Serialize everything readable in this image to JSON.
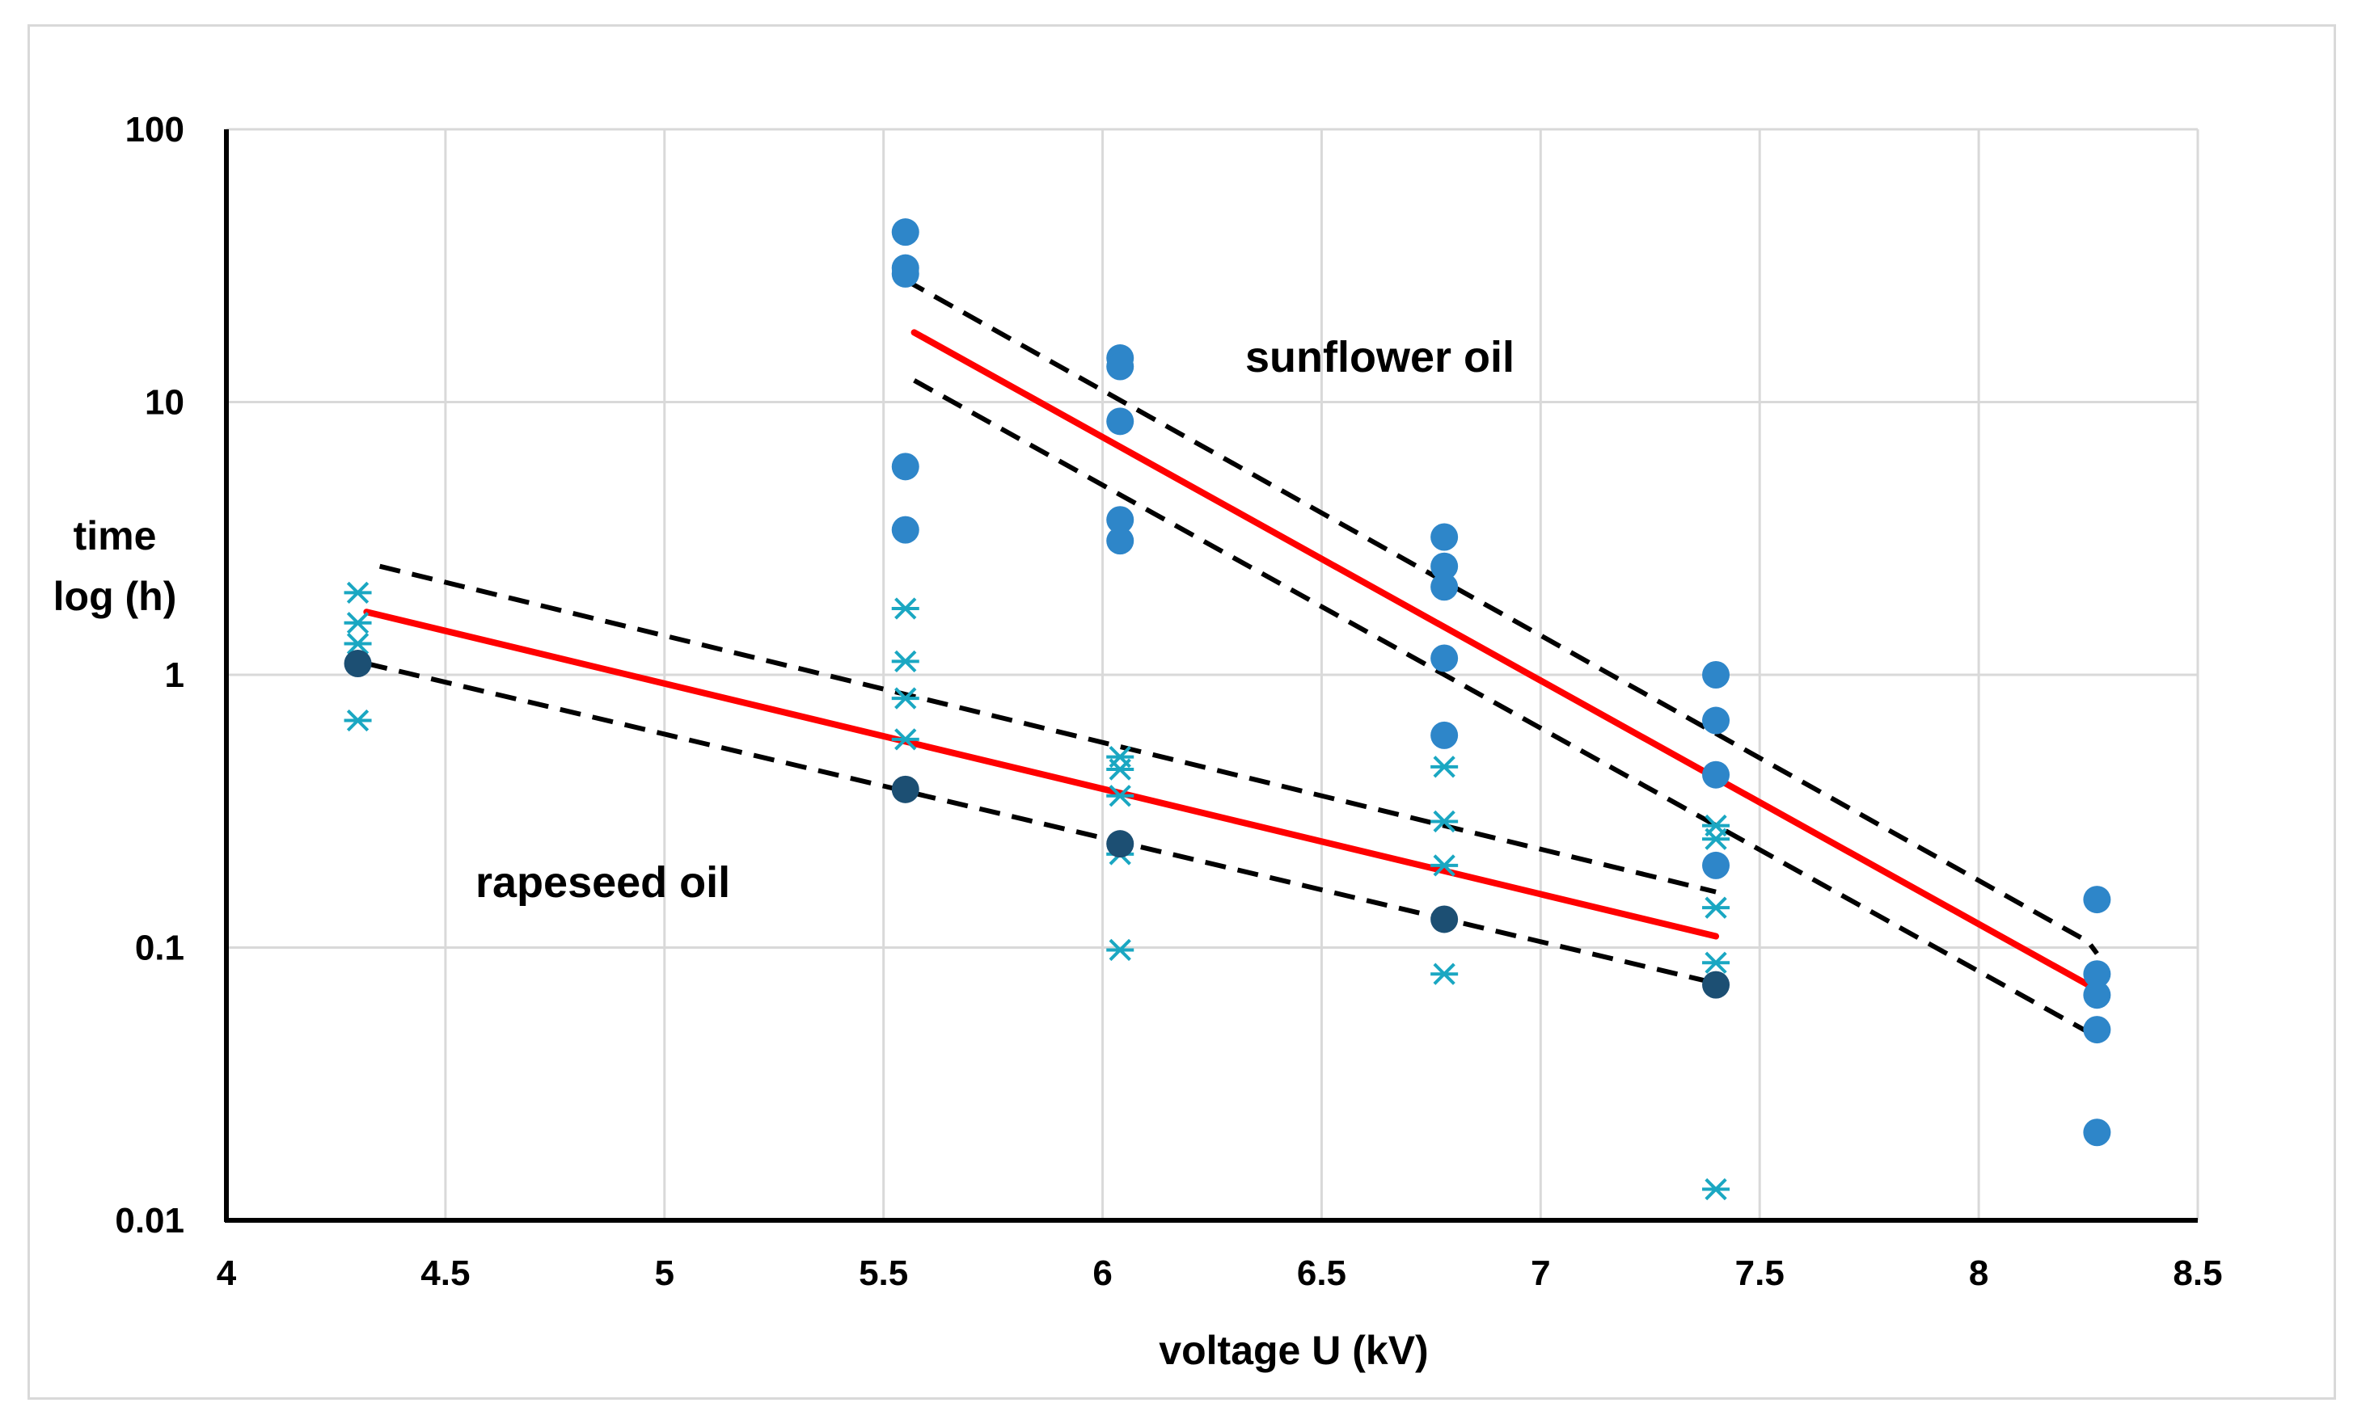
{
  "chart_data": {
    "type": "scatter",
    "xlabel": "voltage U (kV)",
    "ylabel": [
      "time",
      "log (h)"
    ],
    "xlim": [
      4,
      8.5
    ],
    "ylim": [
      0.01,
      100
    ],
    "yscale": "log",
    "x_ticks": [
      "4",
      "4.5",
      "5",
      "5.5",
      "6",
      "6.5",
      "7",
      "7.5",
      "8",
      "8.5"
    ],
    "y_ticks": [
      "0.01",
      "0.1",
      "1",
      "10",
      "100"
    ],
    "grid": true,
    "annotations": [
      "sunflower oil",
      "rapeseed oil"
    ],
    "colors": {
      "sunflower_marker": "#2e86c9",
      "rapeseed_marker": "#1aa7c2",
      "rapeseed_dark_marker": "#1c4f73",
      "fit_line": "#ff0000",
      "confidence_band": "#000000",
      "grid": "#d9d9d9"
    },
    "series": [
      {
        "name": "sunflower oil",
        "marker": "circle",
        "points": [
          [
            5.55,
            42
          ],
          [
            5.55,
            31
          ],
          [
            5.55,
            29.5
          ],
          [
            5.55,
            5.8
          ],
          [
            5.55,
            3.4
          ],
          [
            6.04,
            14.5
          ],
          [
            6.04,
            13.5
          ],
          [
            6.04,
            8.5
          ],
          [
            6.04,
            3.7
          ],
          [
            6.04,
            3.1
          ],
          [
            6.78,
            3.2
          ],
          [
            6.78,
            2.5
          ],
          [
            6.78,
            2.1
          ],
          [
            6.78,
            1.15
          ],
          [
            6.78,
            0.6
          ],
          [
            7.4,
            1.0
          ],
          [
            7.4,
            0.68
          ],
          [
            7.4,
            0.43
          ],
          [
            7.4,
            0.2
          ],
          [
            8.27,
            0.15
          ],
          [
            8.27,
            0.08
          ],
          [
            8.27,
            0.067
          ],
          [
            8.27,
            0.05
          ],
          [
            8.27,
            0.021
          ]
        ]
      },
      {
        "name": "rapeseed oil",
        "marker": "asterisk",
        "points": [
          [
            4.3,
            2.0
          ],
          [
            4.3,
            1.55
          ],
          [
            4.3,
            1.3
          ],
          [
            4.3,
            0.68
          ],
          [
            5.55,
            1.75
          ],
          [
            5.55,
            1.12
          ],
          [
            5.55,
            0.82
          ],
          [
            5.55,
            0.58
          ],
          [
            6.04,
            0.5
          ],
          [
            6.04,
            0.45
          ],
          [
            6.04,
            0.36
          ],
          [
            6.04,
            0.22
          ],
          [
            6.04,
            0.098
          ],
          [
            6.78,
            0.46
          ],
          [
            6.78,
            0.29
          ],
          [
            6.78,
            0.2
          ],
          [
            6.78,
            0.08
          ],
          [
            7.4,
            0.28
          ],
          [
            7.4,
            0.25
          ],
          [
            7.4,
            0.14
          ],
          [
            7.4,
            0.088
          ],
          [
            7.4,
            0.013
          ]
        ]
      },
      {
        "name": "rapeseed oil (dark)",
        "marker": "circle-dark",
        "points": [
          [
            4.3,
            1.1
          ],
          [
            5.55,
            0.38
          ],
          [
            6.04,
            0.24
          ],
          [
            6.78,
            0.127
          ],
          [
            7.4,
            0.073
          ]
        ]
      }
    ],
    "fit_lines": [
      {
        "name": "sunflower oil fit",
        "from": [
          5.57,
          18
        ],
        "to": [
          8.27,
          0.07
        ]
      },
      {
        "name": "rapeseed oil fit",
        "from": [
          4.32,
          1.7
        ],
        "to": [
          7.4,
          0.11
        ]
      }
    ],
    "confidence_bands": [
      {
        "name": "sunflower oil upper bound",
        "points": [
          [
            5.55,
            28
          ],
          [
            8.25,
            0.105
          ],
          [
            8.27,
            0.095
          ]
        ]
      },
      {
        "name": "sunflower oil lower bound",
        "points": [
          [
            5.57,
            12
          ],
          [
            8.27,
            0.047
          ]
        ]
      },
      {
        "name": "rapeseed oil upper bound",
        "points": [
          [
            4.35,
            2.5
          ],
          [
            7.4,
            0.16
          ]
        ]
      },
      {
        "name": "rapeseed oil lower bound",
        "points": [
          [
            4.32,
            1.1
          ],
          [
            7.4,
            0.074
          ]
        ]
      }
    ]
  }
}
